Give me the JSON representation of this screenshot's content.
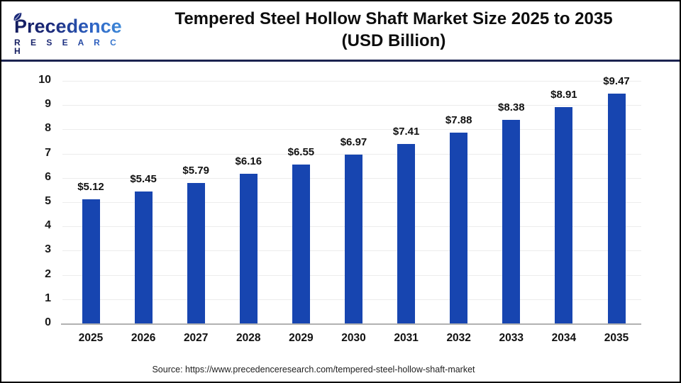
{
  "header": {
    "logo": {
      "name": "Precedence",
      "subname": "R E S E A R C H"
    },
    "title_line1": "Tempered Steel Hollow Shaft Market Size 2025 to 2035",
    "title_line2": "(USD Billion)"
  },
  "chart_data": {
    "type": "bar",
    "title": "Tempered Steel Hollow Shaft Market Size 2025 to 2035 (USD Billion)",
    "categories": [
      "2025",
      "2026",
      "2027",
      "2028",
      "2029",
      "2030",
      "2031",
      "2032",
      "2033",
      "2034",
      "2035"
    ],
    "values": [
      5.12,
      5.45,
      5.79,
      6.16,
      6.55,
      6.97,
      7.41,
      7.88,
      8.38,
      8.91,
      9.47
    ],
    "value_labels": [
      "$5.12",
      "$5.45",
      "$5.79",
      "$6.16",
      "$6.55",
      "$6.97",
      "$7.41",
      "$7.88",
      "$8.38",
      "$8.91",
      "$9.47"
    ],
    "xlabel": "",
    "ylabel": "",
    "ylim": [
      0,
      10
    ],
    "yticks": [
      0,
      1,
      2,
      3,
      4,
      5,
      6,
      7,
      8,
      9,
      10
    ],
    "grid": true,
    "legend": false,
    "bar_color": "#1745b0",
    "gridline_color": "#ececec",
    "baseline_color": "#b1b1b1"
  },
  "footer": {
    "source": "Source: https://www.precedenceresearch.com/tempered-steel-hollow-shaft-market"
  }
}
